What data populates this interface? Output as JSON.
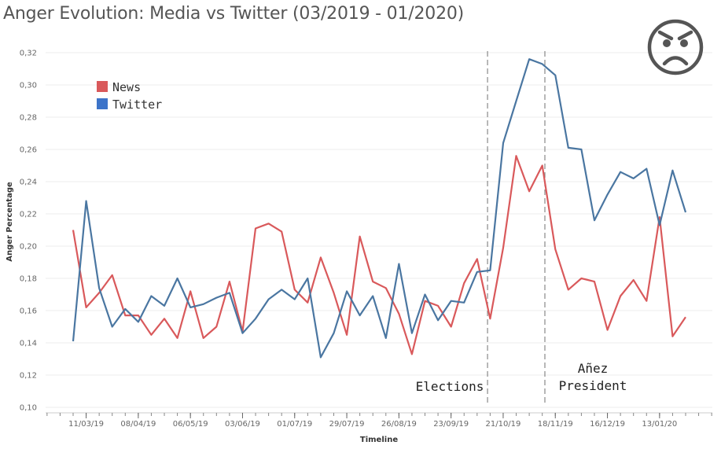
{
  "title": "Anger Evolution: Media vs Twitter (03/2019 - 01/2020)",
  "icon": "angry-face-icon",
  "chart_data": {
    "type": "line",
    "xlabel": "Timeline",
    "ylabel": "Anger Percentage",
    "ylim": [
      0.1,
      0.32
    ],
    "yticks": [
      "0,10",
      "0,12",
      "0,14",
      "0,16",
      "0,18",
      "0,20",
      "0,22",
      "0,24",
      "0,26",
      "0,28",
      "0,30",
      "0,32"
    ],
    "ytick_values": [
      0.1,
      0.12,
      0.14,
      0.16,
      0.18,
      0.2,
      0.22,
      0.24,
      0.26,
      0.28,
      0.3,
      0.32
    ],
    "xticks": [
      "11/03/19",
      "08/04/19",
      "06/05/19",
      "03/06/19",
      "01/07/19",
      "29/07/19",
      "26/08/19",
      "23/09/19",
      "21/10/19",
      "18/11/19",
      "16/12/19",
      "13/01/20"
    ],
    "grid": true,
    "legend_position": "top-left",
    "series": [
      {
        "name": "News",
        "color": "#d9595b",
        "values": [
          0.21,
          0.162,
          0.171,
          0.182,
          0.157,
          0.157,
          0.145,
          0.155,
          0.143,
          0.172,
          0.143,
          0.15,
          0.178,
          0.147,
          0.211,
          0.214,
          0.209,
          0.173,
          0.165,
          0.193,
          0.171,
          0.145,
          0.206,
          0.178,
          0.174,
          0.158,
          0.133,
          0.166,
          0.163,
          0.15,
          0.177,
          0.192,
          0.155,
          0.199,
          0.256,
          0.234,
          0.25,
          0.198,
          0.173,
          0.18,
          0.178,
          0.148,
          0.169,
          0.179,
          0.166,
          0.218,
          0.144,
          0.156
        ]
      },
      {
        "name": "Twitter",
        "color": "#4a76a1",
        "values": [
          0.141,
          0.228,
          0.174,
          0.15,
          0.161,
          0.153,
          0.169,
          0.163,
          0.18,
          0.162,
          0.164,
          0.168,
          0.171,
          0.146,
          0.155,
          0.167,
          0.173,
          0.167,
          0.18,
          0.131,
          0.146,
          0.172,
          0.157,
          0.169,
          0.143,
          0.189,
          0.146,
          0.17,
          0.154,
          0.166,
          0.165,
          0.184,
          0.185,
          0.264,
          0.29,
          0.316,
          0.313,
          0.306,
          0.261,
          0.26,
          0.216,
          0.232,
          0.246,
          0.242,
          0.248,
          0.213,
          0.247,
          0.221
        ]
      }
    ],
    "annotations": [
      {
        "text": "Elections"
      },
      {
        "text": "Añez"
      },
      {
        "text": "President"
      }
    ]
  }
}
